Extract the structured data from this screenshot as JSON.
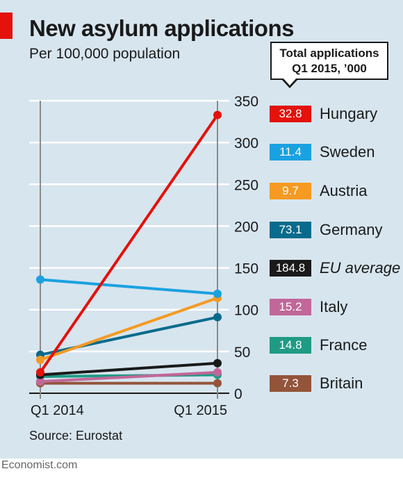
{
  "header": {
    "title": "New asylum applications",
    "subtitle": "Per 100,000 population",
    "callout_line1": "Total applications",
    "callout_line2": "Q1 2015, ’000"
  },
  "footer": {
    "source": "Source: Eurostat",
    "brand": "Economist.com"
  },
  "chart_data": {
    "type": "line",
    "title": "New asylum applications",
    "subtitle": "Per 100,000 population",
    "categories": [
      "Q1 2014",
      "Q1 2015"
    ],
    "y_ticks": [
      "0",
      "50",
      "100",
      "150",
      "200",
      "250",
      "300",
      "350"
    ],
    "ylim": [
      0,
      350
    ],
    "grid": true,
    "legend_placement": "right",
    "legend_title": "Total applications Q1 2015, ’000",
    "series": [
      {
        "name": "Hungary",
        "values": [
          25,
          333
        ],
        "total": "32.8",
        "color": "#e3120b",
        "italic": false
      },
      {
        "name": "Sweden",
        "values": [
          136,
          119
        ],
        "total": "11.4",
        "color": "#1aa1e0",
        "italic": false
      },
      {
        "name": "Austria",
        "values": [
          40,
          114
        ],
        "total": "9.7",
        "color": "#f59a22",
        "italic": false
      },
      {
        "name": "Germany",
        "values": [
          46,
          91
        ],
        "total": "73.1",
        "color": "#096b8c",
        "italic": false
      },
      {
        "name": "EU average",
        "values": [
          22,
          36
        ],
        "total": "184.8",
        "color": "#1a1a1a",
        "italic": true
      },
      {
        "name": "Italy",
        "values": [
          14,
          25
        ],
        "total": "15.2",
        "color": "#c1679a",
        "italic": false
      },
      {
        "name": "France",
        "values": [
          20,
          22
        ],
        "total": "14.8",
        "color": "#1f9b85",
        "italic": false
      },
      {
        "name": "Britain",
        "values": [
          12,
          12
        ],
        "total": "7.3",
        "color": "#93543a",
        "italic": false
      }
    ]
  }
}
